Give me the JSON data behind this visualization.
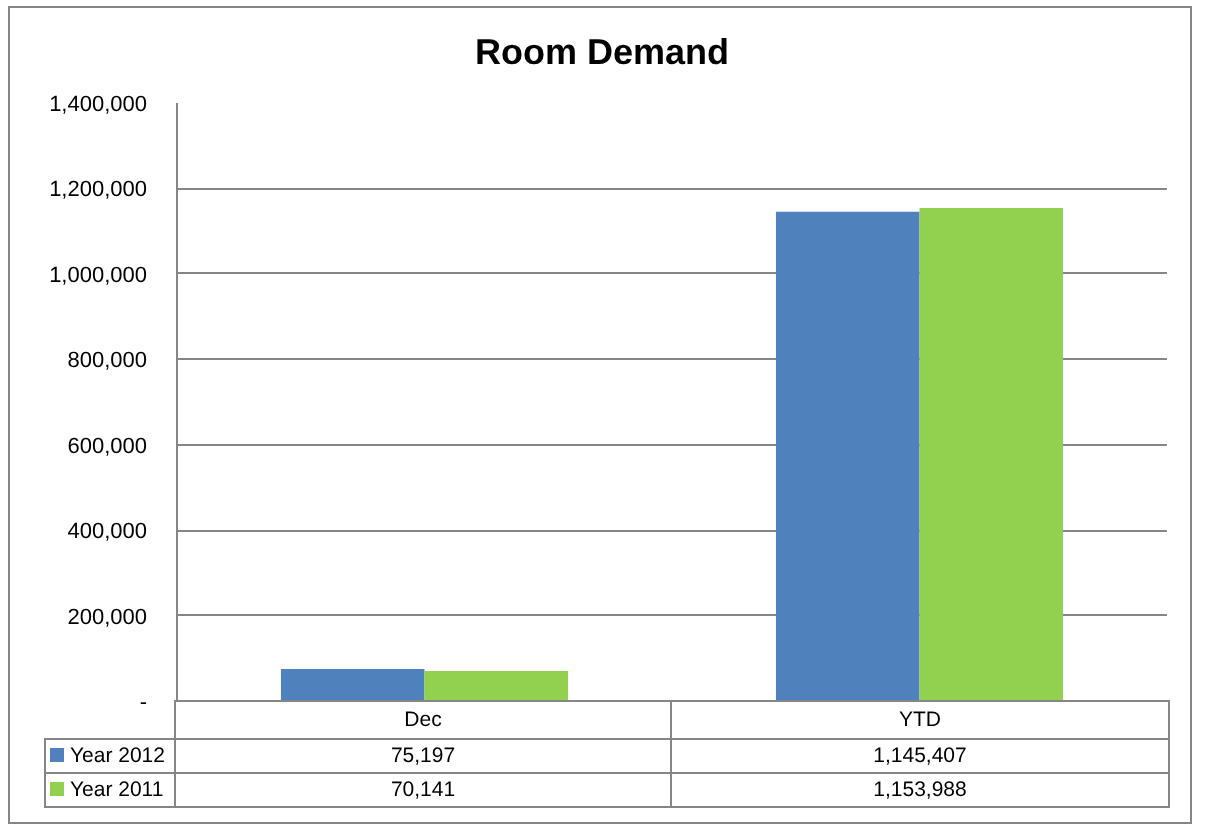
{
  "chart_data": {
    "type": "bar",
    "title": "Room Demand",
    "categories": [
      "Dec",
      "YTD"
    ],
    "series": [
      {
        "name": "Year 2012",
        "color": "#4f81bd",
        "values": [
          75197,
          1145407
        ],
        "value_labels": [
          "75,197",
          "1,145,407"
        ]
      },
      {
        "name": "Year 2011",
        "color": "#92d050",
        "values": [
          70141,
          1153988
        ],
        "value_labels": [
          "70,141",
          "1,153,988"
        ]
      }
    ],
    "ylim": [
      0,
      1400000
    ],
    "yticks": [
      {
        "value": 0,
        "label": "-"
      },
      {
        "value": 200000,
        "label": "200,000"
      },
      {
        "value": 400000,
        "label": "400,000"
      },
      {
        "value": 600000,
        "label": "600,000"
      },
      {
        "value": 800000,
        "label": "800,000"
      },
      {
        "value": 1000000,
        "label": "1,000,000"
      },
      {
        "value": 1200000,
        "label": "1,200,000"
      },
      {
        "value": 1400000,
        "label": "1,400,000"
      }
    ],
    "grid": "y",
    "legend": "bottom"
  }
}
